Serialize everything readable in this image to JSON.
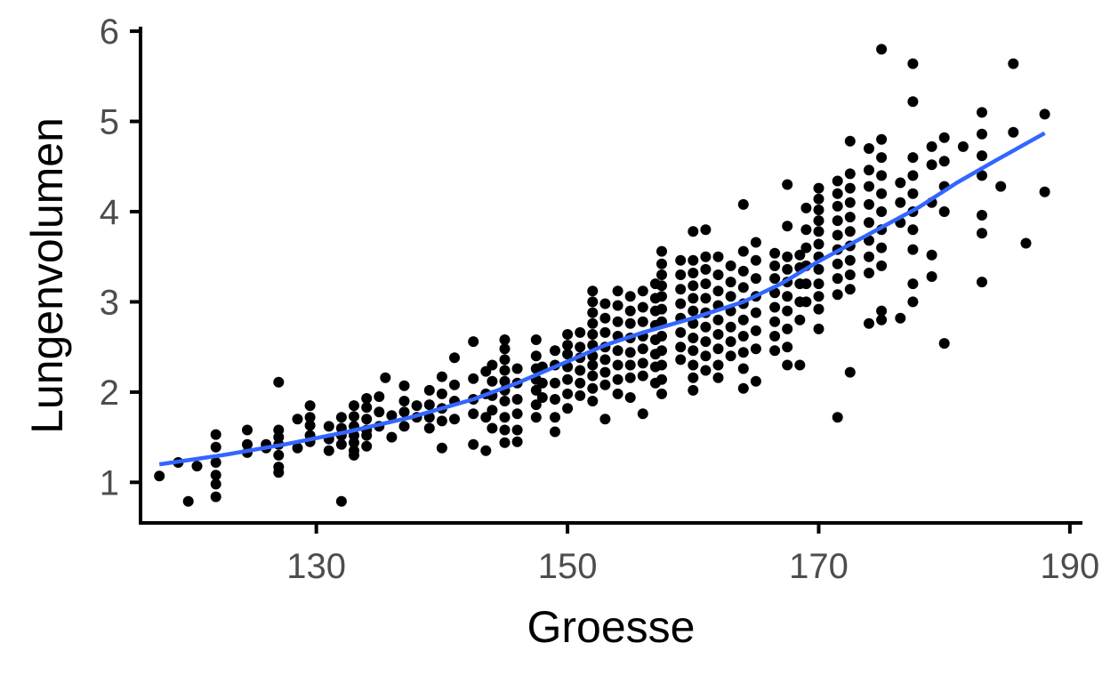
{
  "chart_data": {
    "type": "scatter",
    "title": "",
    "xlabel": "Groesse",
    "ylabel": "Lungenvolumen",
    "xlim": [
      116,
      191
    ],
    "ylim": [
      0.55,
      6.05
    ],
    "xticks": [
      130,
      150,
      170,
      190
    ],
    "yticks": [
      1,
      2,
      3,
      4,
      5,
      6
    ],
    "xtick_labels": [
      "130",
      "150",
      "170",
      "190"
    ],
    "ytick_labels": [
      "1",
      "2",
      "3",
      "4",
      "5",
      "6"
    ],
    "grid": false,
    "legend": "none",
    "point_color": "#000000",
    "trend_color": "#3366ff",
    "points": [
      [
        117.5,
        1.07
      ],
      [
        119.0,
        1.22
      ],
      [
        119.8,
        0.79
      ],
      [
        120.5,
        1.18
      ],
      [
        122.0,
        1.53
      ],
      [
        122.0,
        1.39
      ],
      [
        122.0,
        1.22
      ],
      [
        122.0,
        1.08
      ],
      [
        122.0,
        0.98
      ],
      [
        122.0,
        0.84
      ],
      [
        124.5,
        1.58
      ],
      [
        124.5,
        1.42
      ],
      [
        124.5,
        1.33
      ],
      [
        126.0,
        1.42
      ],
      [
        126.0,
        1.38
      ],
      [
        127.0,
        2.11
      ],
      [
        127.0,
        1.58
      ],
      [
        127.0,
        1.5
      ],
      [
        127.0,
        1.42
      ],
      [
        127.0,
        1.3
      ],
      [
        127.0,
        1.17
      ],
      [
        127.0,
        1.11
      ],
      [
        128.5,
        1.7
      ],
      [
        128.5,
        1.38
      ],
      [
        129.5,
        1.85
      ],
      [
        129.5,
        1.72
      ],
      [
        129.5,
        1.63
      ],
      [
        129.5,
        1.52
      ],
      [
        129.5,
        1.45
      ],
      [
        131.0,
        1.62
      ],
      [
        131.0,
        1.48
      ],
      [
        131.0,
        1.35
      ],
      [
        132.0,
        1.72
      ],
      [
        132.0,
        1.6
      ],
      [
        132.0,
        1.52
      ],
      [
        132.0,
        1.42
      ],
      [
        132.0,
        0.79
      ],
      [
        133.0,
        1.85
      ],
      [
        133.0,
        1.73
      ],
      [
        133.0,
        1.62
      ],
      [
        133.0,
        1.52
      ],
      [
        133.0,
        1.44
      ],
      [
        133.0,
        1.35
      ],
      [
        133.0,
        1.3
      ],
      [
        134.0,
        1.93
      ],
      [
        134.0,
        1.83
      ],
      [
        134.0,
        1.7
      ],
      [
        134.0,
        1.58
      ],
      [
        134.0,
        1.52
      ],
      [
        134.0,
        1.4
      ],
      [
        135.0,
        1.95
      ],
      [
        135.0,
        1.78
      ],
      [
        135.0,
        1.62
      ],
      [
        135.5,
        2.16
      ],
      [
        136.0,
        1.74
      ],
      [
        136.0,
        1.5
      ],
      [
        137.0,
        2.07
      ],
      [
        137.0,
        1.9
      ],
      [
        137.0,
        1.78
      ],
      [
        137.0,
        1.62
      ],
      [
        138.0,
        1.85
      ],
      [
        138.0,
        1.72
      ],
      [
        139.0,
        2.02
      ],
      [
        139.0,
        1.86
      ],
      [
        139.0,
        1.72
      ],
      [
        139.0,
        1.6
      ],
      [
        140.0,
        2.17
      ],
      [
        140.0,
        1.98
      ],
      [
        140.0,
        1.82
      ],
      [
        140.0,
        1.68
      ],
      [
        140.0,
        1.38
      ],
      [
        141.0,
        2.38
      ],
      [
        141.0,
        2.08
      ],
      [
        141.0,
        1.9
      ],
      [
        141.0,
        1.7
      ],
      [
        142.5,
        2.56
      ],
      [
        142.5,
        2.15
      ],
      [
        142.5,
        1.92
      ],
      [
        142.5,
        1.76
      ],
      [
        142.5,
        1.42
      ],
      [
        143.5,
        2.23
      ],
      [
        143.5,
        1.98
      ],
      [
        143.5,
        1.72
      ],
      [
        143.5,
        1.35
      ],
      [
        144.0,
        2.3
      ],
      [
        144.0,
        2.12
      ],
      [
        144.0,
        1.96
      ],
      [
        144.0,
        1.8
      ],
      [
        144.0,
        1.6
      ],
      [
        145.0,
        2.58
      ],
      [
        145.0,
        2.48
      ],
      [
        145.0,
        2.36
      ],
      [
        145.0,
        2.24
      ],
      [
        145.0,
        2.12
      ],
      [
        145.0,
        2.02
      ],
      [
        145.0,
        1.9
      ],
      [
        145.0,
        1.72
      ],
      [
        145.0,
        1.58
      ],
      [
        145.0,
        1.44
      ],
      [
        146.0,
        2.26
      ],
      [
        146.0,
        2.1
      ],
      [
        146.0,
        1.92
      ],
      [
        146.0,
        1.76
      ],
      [
        146.0,
        1.58
      ],
      [
        146.0,
        1.45
      ],
      [
        147.5,
        2.58
      ],
      [
        147.5,
        2.4
      ],
      [
        147.5,
        2.26
      ],
      [
        147.5,
        2.14
      ],
      [
        147.5,
        2.02
      ],
      [
        147.5,
        1.86
      ],
      [
        147.5,
        1.72
      ],
      [
        148.0,
        2.28
      ],
      [
        148.0,
        2.1
      ],
      [
        148.0,
        1.94
      ],
      [
        149.0,
        2.46
      ],
      [
        149.0,
        2.3
      ],
      [
        149.0,
        2.1
      ],
      [
        149.0,
        1.92
      ],
      [
        149.0,
        1.56
      ],
      [
        149.0,
        1.72
      ],
      [
        150.0,
        2.64
      ],
      [
        150.0,
        2.52
      ],
      [
        150.0,
        2.42
      ],
      [
        150.0,
        2.28
      ],
      [
        150.0,
        2.14
      ],
      [
        150.0,
        1.98
      ],
      [
        150.0,
        1.82
      ],
      [
        151.0,
        2.66
      ],
      [
        151.0,
        2.5
      ],
      [
        151.0,
        2.38
      ],
      [
        151.0,
        2.24
      ],
      [
        151.0,
        2.1
      ],
      [
        151.0,
        1.96
      ],
      [
        152.0,
        3.12
      ],
      [
        152.0,
        3.0
      ],
      [
        152.0,
        2.88
      ],
      [
        152.0,
        2.76
      ],
      [
        152.0,
        2.64
      ],
      [
        152.0,
        2.52
      ],
      [
        152.0,
        2.4
      ],
      [
        152.0,
        2.3
      ],
      [
        152.0,
        2.18
      ],
      [
        152.0,
        2.04
      ],
      [
        152.0,
        1.9
      ],
      [
        153.0,
        2.98
      ],
      [
        153.0,
        2.82
      ],
      [
        153.0,
        2.66
      ],
      [
        153.0,
        2.5
      ],
      [
        153.0,
        2.36
      ],
      [
        153.0,
        2.22
      ],
      [
        153.0,
        2.08
      ],
      [
        153.0,
        1.7
      ],
      [
        154.0,
        3.12
      ],
      [
        154.0,
        2.96
      ],
      [
        154.0,
        2.78
      ],
      [
        154.0,
        2.62
      ],
      [
        154.0,
        2.46
      ],
      [
        154.0,
        2.3
      ],
      [
        154.0,
        2.14
      ],
      [
        154.0,
        1.98
      ],
      [
        155.0,
        3.06
      ],
      [
        155.0,
        2.9
      ],
      [
        155.0,
        2.76
      ],
      [
        155.0,
        2.6
      ],
      [
        155.0,
        2.44
      ],
      [
        155.0,
        2.3
      ],
      [
        155.0,
        2.16
      ],
      [
        155.0,
        1.94
      ],
      [
        156.0,
        3.12
      ],
      [
        156.0,
        2.94
      ],
      [
        156.0,
        2.78
      ],
      [
        156.0,
        2.62
      ],
      [
        156.0,
        2.48
      ],
      [
        156.0,
        2.32
      ],
      [
        156.0,
        2.18
      ],
      [
        156.0,
        1.76
      ],
      [
        157.0,
        3.2
      ],
      [
        157.0,
        3.04
      ],
      [
        157.0,
        2.9
      ],
      [
        157.0,
        2.74
      ],
      [
        157.0,
        2.58
      ],
      [
        157.0,
        2.42
      ],
      [
        157.0,
        2.28
      ],
      [
        157.0,
        2.1
      ],
      [
        157.5,
        3.56
      ],
      [
        157.5,
        3.42
      ],
      [
        157.5,
        3.3
      ],
      [
        157.5,
        3.18
      ],
      [
        157.5,
        3.06
      ],
      [
        157.5,
        2.92
      ],
      [
        157.5,
        2.78
      ],
      [
        157.5,
        2.62
      ],
      [
        157.5,
        2.46
      ],
      [
        157.5,
        2.3
      ],
      [
        157.5,
        2.14
      ],
      [
        157.5,
        1.98
      ],
      [
        159.0,
        3.46
      ],
      [
        159.0,
        3.3
      ],
      [
        159.0,
        3.14
      ],
      [
        159.0,
        2.98
      ],
      [
        159.0,
        2.82
      ],
      [
        159.0,
        2.66
      ],
      [
        159.0,
        2.5
      ],
      [
        159.0,
        2.36
      ],
      [
        160.0,
        3.78
      ],
      [
        160.0,
        3.46
      ],
      [
        160.0,
        3.32
      ],
      [
        160.0,
        3.18
      ],
      [
        160.0,
        3.04
      ],
      [
        160.0,
        2.9
      ],
      [
        160.0,
        2.76
      ],
      [
        160.0,
        2.6
      ],
      [
        160.0,
        2.46
      ],
      [
        160.0,
        2.3
      ],
      [
        160.0,
        2.16
      ],
      [
        160.0,
        2.02
      ],
      [
        161.0,
        3.8
      ],
      [
        161.0,
        3.5
      ],
      [
        161.0,
        3.36
      ],
      [
        161.0,
        3.2
      ],
      [
        161.0,
        3.04
      ],
      [
        161.0,
        2.88
      ],
      [
        161.0,
        2.72
      ],
      [
        161.0,
        2.56
      ],
      [
        161.0,
        2.4
      ],
      [
        161.0,
        2.24
      ],
      [
        162.0,
        3.5
      ],
      [
        162.0,
        3.3
      ],
      [
        162.0,
        3.12
      ],
      [
        162.0,
        2.96
      ],
      [
        162.0,
        2.8
      ],
      [
        162.0,
        2.64
      ],
      [
        162.0,
        2.48
      ],
      [
        162.0,
        2.3
      ],
      [
        162.0,
        2.16
      ],
      [
        163.0,
        3.4
      ],
      [
        163.0,
        3.22
      ],
      [
        163.0,
        3.06
      ],
      [
        163.0,
        2.9
      ],
      [
        163.0,
        2.72
      ],
      [
        163.0,
        2.56
      ],
      [
        163.0,
        2.4
      ],
      [
        164.0,
        4.08
      ],
      [
        164.0,
        3.56
      ],
      [
        164.0,
        3.34
      ],
      [
        164.0,
        3.16
      ],
      [
        164.0,
        2.98
      ],
      [
        164.0,
        2.8
      ],
      [
        164.0,
        2.62
      ],
      [
        164.0,
        2.44
      ],
      [
        164.0,
        2.26
      ],
      [
        164.0,
        2.04
      ],
      [
        165.0,
        3.66
      ],
      [
        165.0,
        3.46
      ],
      [
        165.0,
        3.26
      ],
      [
        165.0,
        3.06
      ],
      [
        165.0,
        2.88
      ],
      [
        165.0,
        2.68
      ],
      [
        165.0,
        2.48
      ],
      [
        165.0,
        2.12
      ],
      [
        166.5,
        3.54
      ],
      [
        166.5,
        3.4
      ],
      [
        166.5,
        3.26
      ],
      [
        166.5,
        3.1
      ],
      [
        166.5,
        2.94
      ],
      [
        166.5,
        2.78
      ],
      [
        166.5,
        2.62
      ],
      [
        166.5,
        2.46
      ],
      [
        167.5,
        4.3
      ],
      [
        167.5,
        3.84
      ],
      [
        167.5,
        3.5
      ],
      [
        167.5,
        3.36
      ],
      [
        167.5,
        3.22
      ],
      [
        167.5,
        3.06
      ],
      [
        167.5,
        2.9
      ],
      [
        167.5,
        2.7
      ],
      [
        167.5,
        2.5
      ],
      [
        167.5,
        2.3
      ],
      [
        168.5,
        3.52
      ],
      [
        168.5,
        3.38
      ],
      [
        168.5,
        3.2
      ],
      [
        168.5,
        3.0
      ],
      [
        168.5,
        2.8
      ],
      [
        168.5,
        2.3
      ],
      [
        169.0,
        4.04
      ],
      [
        169.0,
        3.8
      ],
      [
        169.0,
        3.6
      ],
      [
        169.0,
        3.4
      ],
      [
        169.0,
        3.2
      ],
      [
        169.0,
        3.0
      ],
      [
        170.0,
        4.26
      ],
      [
        170.0,
        4.14
      ],
      [
        170.0,
        4.02
      ],
      [
        170.0,
        3.9
      ],
      [
        170.0,
        3.78
      ],
      [
        170.0,
        3.64
      ],
      [
        170.0,
        3.5
      ],
      [
        170.0,
        3.36
      ],
      [
        170.0,
        3.2
      ],
      [
        170.0,
        3.06
      ],
      [
        170.0,
        2.92
      ],
      [
        170.0,
        2.7
      ],
      [
        171.5,
        4.34
      ],
      [
        171.5,
        4.2
      ],
      [
        171.5,
        4.06
      ],
      [
        171.5,
        3.9
      ],
      [
        171.5,
        3.74
      ],
      [
        171.5,
        3.58
      ],
      [
        171.5,
        3.42
      ],
      [
        171.5,
        3.26
      ],
      [
        171.5,
        3.08
      ],
      [
        171.5,
        1.72
      ],
      [
        172.5,
        4.78
      ],
      [
        172.5,
        4.42
      ],
      [
        172.5,
        4.26
      ],
      [
        172.5,
        4.1
      ],
      [
        172.5,
        3.94
      ],
      [
        172.5,
        3.78
      ],
      [
        172.5,
        3.62
      ],
      [
        172.5,
        3.46
      ],
      [
        172.5,
        3.3
      ],
      [
        172.5,
        3.14
      ],
      [
        172.5,
        2.22
      ],
      [
        174.0,
        4.7
      ],
      [
        174.0,
        4.46
      ],
      [
        174.0,
        4.28
      ],
      [
        174.0,
        4.08
      ],
      [
        174.0,
        3.88
      ],
      [
        174.0,
        3.68
      ],
      [
        174.0,
        3.5
      ],
      [
        174.0,
        3.32
      ],
      [
        174.0,
        2.76
      ],
      [
        175.0,
        5.8
      ],
      [
        175.0,
        4.8
      ],
      [
        175.0,
        4.6
      ],
      [
        175.0,
        4.4
      ],
      [
        175.0,
        4.2
      ],
      [
        175.0,
        4.0
      ],
      [
        175.0,
        3.8
      ],
      [
        175.0,
        3.6
      ],
      [
        175.0,
        3.4
      ],
      [
        175.0,
        2.9
      ],
      [
        175.0,
        2.8
      ],
      [
        176.5,
        4.32
      ],
      [
        176.5,
        4.1
      ],
      [
        176.5,
        3.88
      ],
      [
        176.5,
        2.82
      ],
      [
        177.5,
        5.64
      ],
      [
        177.5,
        5.22
      ],
      [
        177.5,
        4.6
      ],
      [
        177.5,
        4.4
      ],
      [
        177.5,
        4.2
      ],
      [
        177.5,
        4.0
      ],
      [
        177.5,
        3.8
      ],
      [
        177.5,
        3.58
      ],
      [
        177.5,
        3.2
      ],
      [
        177.5,
        3.0
      ],
      [
        179.0,
        4.72
      ],
      [
        179.0,
        4.52
      ],
      [
        179.0,
        4.1
      ],
      [
        179.0,
        3.52
      ],
      [
        179.0,
        3.28
      ],
      [
        180.0,
        4.82
      ],
      [
        180.0,
        4.56
      ],
      [
        180.0,
        4.28
      ],
      [
        180.0,
        4.0
      ],
      [
        180.0,
        2.54
      ],
      [
        181.5,
        4.72
      ],
      [
        183.0,
        5.1
      ],
      [
        183.0,
        4.86
      ],
      [
        183.0,
        4.62
      ],
      [
        183.0,
        4.4
      ],
      [
        183.0,
        3.96
      ],
      [
        183.0,
        3.76
      ],
      [
        183.0,
        3.22
      ],
      [
        184.5,
        4.28
      ],
      [
        185.5,
        5.64
      ],
      [
        185.5,
        4.88
      ],
      [
        186.5,
        3.65
      ],
      [
        188.0,
        5.08
      ],
      [
        188.0,
        4.22
      ]
    ],
    "trend": [
      [
        117.5,
        1.2
      ],
      [
        122.5,
        1.3
      ],
      [
        127.5,
        1.42
      ],
      [
        132.5,
        1.56
      ],
      [
        137.5,
        1.72
      ],
      [
        142.5,
        1.92
      ],
      [
        146.0,
        2.1
      ],
      [
        150.0,
        2.34
      ],
      [
        153.0,
        2.52
      ],
      [
        156.0,
        2.66
      ],
      [
        160.0,
        2.82
      ],
      [
        164.0,
        3.0
      ],
      [
        167.0,
        3.2
      ],
      [
        170.0,
        3.45
      ],
      [
        174.0,
        3.75
      ],
      [
        178.0,
        4.05
      ],
      [
        181.0,
        4.32
      ],
      [
        184.0,
        4.56
      ],
      [
        188.0,
        4.87
      ]
    ]
  }
}
